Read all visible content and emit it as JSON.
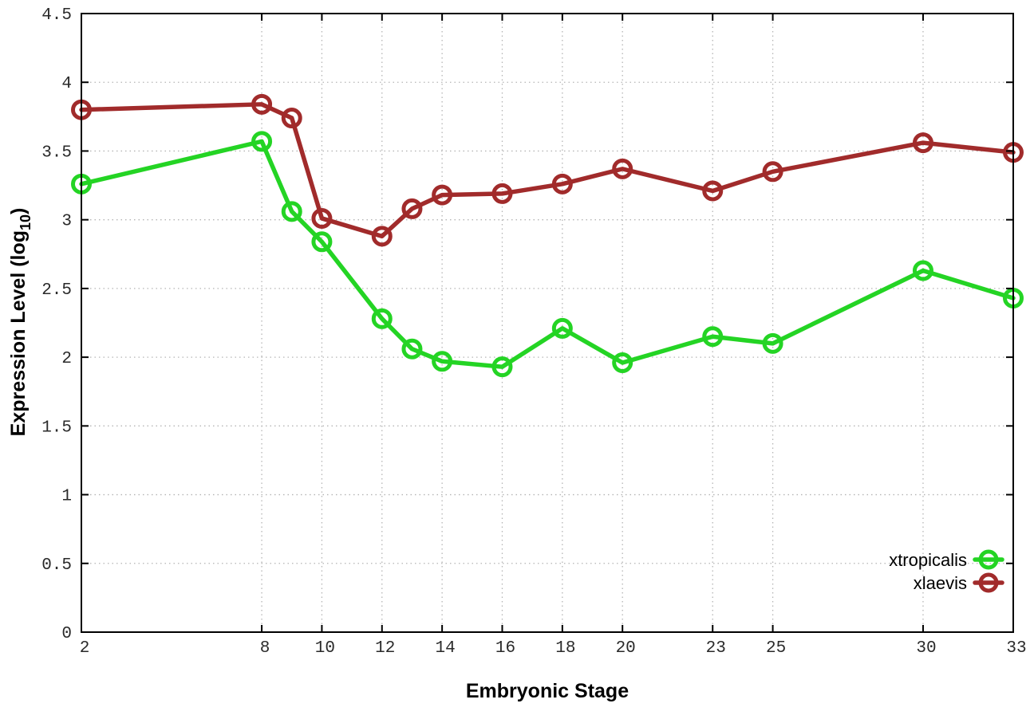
{
  "figure": {
    "background": "#ffffff",
    "axis_color": "#000000",
    "grid_color": "#b5b5b5",
    "text_color": "#1c1c1c"
  },
  "chart_data": {
    "type": "line",
    "title": "",
    "xlabel": "Embryonic Stage",
    "ylabel": {
      "pre": "Expression Level (log",
      "sub": "10",
      "post": ")"
    },
    "x": [
      2,
      8,
      9,
      10,
      12,
      13,
      14,
      16,
      18,
      20,
      23,
      25,
      30,
      33
    ],
    "x_tick_values": [
      2,
      8,
      10,
      12,
      14,
      16,
      18,
      20,
      23,
      25,
      30,
      33
    ],
    "x_tick_labels": [
      "2",
      "8",
      "10",
      "12",
      "14",
      "16",
      "18",
      "20",
      "23",
      "25",
      "30",
      "33"
    ],
    "xlim": [
      2,
      33
    ],
    "y_tick_values": [
      0,
      0.5,
      1,
      1.5,
      2,
      2.5,
      3,
      3.5,
      4,
      4.5
    ],
    "y_tick_labels": [
      "0",
      "0.5",
      "1",
      "1.5",
      "2",
      "2.5",
      "3",
      "3.5",
      "4",
      "4.5"
    ],
    "ylim": [
      0,
      4.5
    ],
    "grid": true,
    "legend_position": "bottom-right",
    "marker": "open-circle",
    "series": [
      {
        "name": "xtropicalis",
        "color": "#24d424",
        "values": [
          3.26,
          3.57,
          3.06,
          2.84,
          2.28,
          2.06,
          1.97,
          1.93,
          2.21,
          1.96,
          2.15,
          2.1,
          2.63,
          2.43
        ]
      },
      {
        "name": "xlaevis",
        "color": "#a12b2b",
        "values": [
          3.8,
          3.84,
          3.74,
          3.01,
          2.88,
          3.08,
          3.18,
          3.19,
          3.26,
          3.37,
          3.21,
          3.35,
          3.56,
          3.49
        ]
      }
    ]
  }
}
